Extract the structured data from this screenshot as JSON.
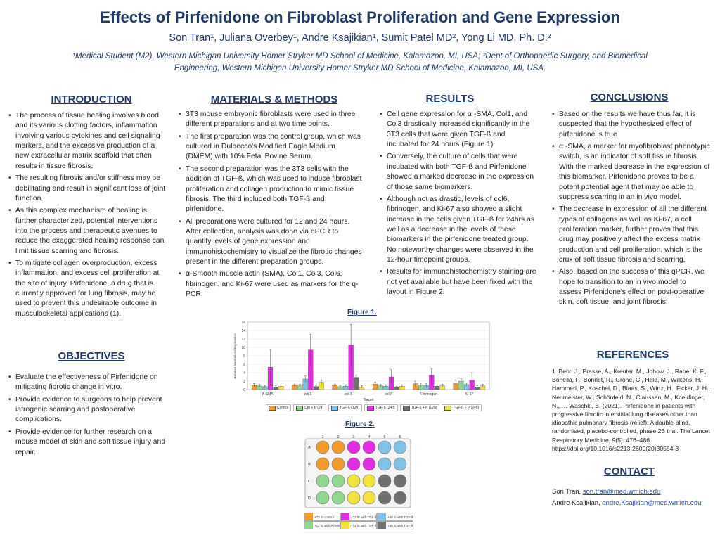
{
  "header": {
    "title": "Effects of Pirfenidone on Fibroblast Proliferation and Gene Expression",
    "authors": "Son Tran¹, Juliana Overbey¹, Andre Ksajikian¹, Sumit Patel MD², Yong Li MD, Ph. D.²",
    "affiliations": "¹Medical Student (M2), Western Michigan University Homer Stryker MD School of Medicine, Kalamazoo, MI, USA; ²Dept of Orthopaedic Surgery, and Biomedical Engineering, Western Michigan University Homer Stryker MD School of Medicine, Kalamazoo, MI, USA."
  },
  "introduction": {
    "heading": "INTRODUCTION",
    "bullets": [
      "The process of tissue healing involves blood and its various clotting factors, inflammation involving various cytokines and cell signaling markers, and the excessive production of a new extracellular matrix scaffold that often results in tissue fibrosis.",
      "The resulting fibrosis and/or stiffness may be debilitating and result in significant loss of joint function.",
      "As this complex mechanism of healing is further characterized, potential interventions into the process and therapeutic avenues to reduce the exaggerated healing response can limit tissue scarring and fibrosis.",
      "To mitigate collagen overproduction, excess inflammation, and excess cell proliferation at the site of injury, Pirfenidone, a drug that is currently approved for lung fibrosis, may be used to prevent this undesirable outcome in musculoskeletal applications (1)."
    ]
  },
  "objectives": {
    "heading": "OBJECTIVES",
    "bullets": [
      "Evaluate the effectiveness of Pirfenidone on mitigating fibrotic change in vitro.",
      "Provide evidence to surgeons to help prevent iatrogenic scarring and postoperative complications.",
      "Provide evidence for further research on a mouse model of skin and soft tissue injury and repair."
    ]
  },
  "methods": {
    "heading": "MATERIALS & METHODS",
    "bullets": [
      "3T3 mouse embryonic fibroblasts were used in three different preparations and at two time points.",
      "The first preparation was the control group, which was cultured in Dulbecco's Modified Eagle Medium (DMEM) with 10% Fetal Bovine Serum.",
      "The second preparation was the 3T3 cells with the addition of TGF-ß, which was used to induce fibroblast proliferation and collagen production to mimic tissue fibrosis. The third included both TGF-ß and pirfenidone.",
      "All preparations were cultured for 12 and 24 hours. After collection, analysis was done via qPCR to quantify levels of gene expression and immunohistochemistry to visualize the fibrotic changes present in the different preparation groups.",
      "α-Smooth muscle actin (SMA), Col1, Col3, Col6, fibrinogen, and Ki-67 were used as markers for the q-PCR."
    ]
  },
  "results": {
    "heading": "RESULTS",
    "bullets": [
      "Cell gene expression for α -SMA, Col1, and Col3 drastically increased significantly in the 3T3 cells that were given TGF-ß and incubated for 24 hours (Figure 1).",
      "Conversely, the culture of cells that were incubated with both TGF-ß and Pirfenidone showed a marked decrease in the expression of those same biomarkers.",
      "Although not as drastic, levels of col6, fibrinogen, and Ki-67 also showed a slight increase in the cells given TGF-ß for 24hrs as well as a decrease in the levels of these biomarkers in the pirfenidone treated group. No noteworthy changes were observed in the 12-hour timepoint groups.",
      "Results for immunohistochemistry staining are not yet available but have been fixed with the layout in Figure 2."
    ]
  },
  "conclusions": {
    "heading": "CONCLUSIONS",
    "bullets": [
      "Based on the results we have thus far, it is suspected that the hypothesized effect of pirfenidone is true.",
      "α -SMA, a marker for myofibroblast phenotypic switch, is an indicator of soft tissue fibrosis. With the marked decrease in the expression of this biomarker, Pirfenidone proves to be a potent potential agent that may be able to suppress scarring in an in vivo model.",
      "The decrease in expression of all the different types of collagens as well as Ki-67, a cell proliferation marker, further proves that this drug may positively affect the excess matrix production and cell proliferation, which is the crux of soft tissue fibrosis and scarring.",
      "Also, based on the success of this qPCR, we hope to transition to an in vivo model to assess Pirfenidone's effect on post-operative skin, soft tissue, and joint fibrosis."
    ]
  },
  "references": {
    "heading": "REFERENCES",
    "text": "1. Behr, J., Prasse, A., Kreuter, M., Johow, J., Rabe, K. F., Bonella, F., Bonnet, R., Grohe, C., Held, M., Wilkens, H., Hammerl, P., Koschel, D., Blaas, S., Wirtz, H., Ficker, J. H., Neumeister, W., Schönfeld, N., Claussen, M., Kneidinger, N., … Waschki, B. (2021). Pirfenidone in patients with progressive fibrotic interstitial lung diseases other than idiopathic pulmonary fibrosis (relief): A double-blind, randomised, placebo-controlled, phase 2B trial. The Lancet Respiratory Medicine, 9(5), 476–486. https://doi.org/10.1016/s2213-2600(20)30554-3"
  },
  "contact": {
    "heading": "CONTACT",
    "people": [
      {
        "name": "Son Tran, ",
        "email": "son.tran@med.wmich.edu"
      },
      {
        "name": "Andre Ksajikian, ",
        "email": "andre.Ksajikian@med.wmich.edu"
      }
    ]
  },
  "figure1": {
    "caption": "Figure 1."
  },
  "figure2": {
    "caption": "Figure 2."
  },
  "chart_data": {
    "type": "bar",
    "xlabel": "Target",
    "ylabel": "Relative Normalized Expression",
    "ylim": [
      0,
      16
    ],
    "yticks": [
      0,
      2,
      4,
      6,
      8,
      10,
      12,
      14,
      16
    ],
    "grid": true,
    "legend_position": "bottom",
    "categories": [
      "A-SMA",
      "col 1",
      "col 3",
      "col 6",
      "Fibrinogen",
      "Ki-67"
    ],
    "series": [
      {
        "name": "Control",
        "color": "#f39c2b",
        "values": [
          1.0,
          1.0,
          1.0,
          1.3,
          1.4,
          1.5
        ],
        "errors": [
          0.4,
          0.3,
          0.3,
          0.5,
          0.6,
          0.8
        ]
      },
      {
        "name": "Ctrl + P (24)",
        "color": "#90d890",
        "values": [
          0.9,
          0.9,
          0.7,
          0.9,
          1.1,
          2.0
        ],
        "errors": [
          0.3,
          0.3,
          0.3,
          0.3,
          0.4,
          0.6
        ]
      },
      {
        "name": "TGF-ß (12h)",
        "color": "#7ec3e6",
        "values": [
          0.7,
          2.5,
          0.8,
          0.8,
          1.0,
          1.2
        ],
        "errors": [
          0.3,
          0.7,
          0.3,
          0.3,
          0.4,
          0.4
        ]
      },
      {
        "name": "TGF-ß (24h)",
        "color": "#e22ee2",
        "values": [
          5.3,
          9.4,
          10.6,
          3.0,
          3.4,
          2.2
        ],
        "errors": [
          4.2,
          3.7,
          4.8,
          1.7,
          1.6,
          1.8
        ]
      },
      {
        "name": "TGF-ß + P (12h)",
        "color": "#707070",
        "values": [
          0.6,
          0.7,
          2.9,
          0.5,
          0.8,
          0.6
        ],
        "errors": [
          0.3,
          0.3,
          0.5,
          0.3,
          0.3,
          0.3
        ]
      },
      {
        "name": "TGF-ß + P (24h)",
        "color": "#f2e33c",
        "values": [
          0.8,
          1.7,
          0.6,
          0.8,
          0.9,
          0.9
        ],
        "errors": [
          0.3,
          0.6,
          0.3,
          0.3,
          0.3,
          0.3
        ]
      }
    ]
  },
  "plate": {
    "col_labels": [
      "1",
      "2",
      "3",
      "4",
      "5",
      "6"
    ],
    "row_labels": [
      "A",
      "B",
      "C",
      "D"
    ],
    "wells": [
      [
        "#f39c2b",
        "#f39c2b",
        "#e22ee2",
        "#e22ee2",
        "#7ec3e6",
        "#7ec3e6"
      ],
      [
        "#f39c2b",
        "#f39c2b",
        "#e22ee2",
        "#e22ee2",
        "#7ec3e6",
        "#7ec3e6"
      ],
      [
        "#90d890",
        "#90d890",
        "#f2e33c",
        "#f2e33c",
        "#707070",
        "#707070"
      ],
      [
        "#90d890",
        "#90d890",
        "#f2e33c",
        "#f2e33c",
        "#707070",
        "#707070"
      ]
    ],
    "legend": [
      {
        "label": "+72 hr control",
        "color": "#f39c2b"
      },
      {
        "label": "+72 hr with TGF-ß",
        "color": "#e22ee2"
      },
      {
        "label": "+48 hr with TGF-ß",
        "color": "#7ec3e6"
      },
      {
        "label": "+72 hr with Pirfenidone",
        "color": "#90d890"
      },
      {
        "label": "+72 hr with TGF-ß and Pirfenidone",
        "color": "#f2e33c"
      },
      {
        "label": "+48 hr with TGF-ß and Pirfenidone",
        "color": "#707070"
      }
    ]
  }
}
